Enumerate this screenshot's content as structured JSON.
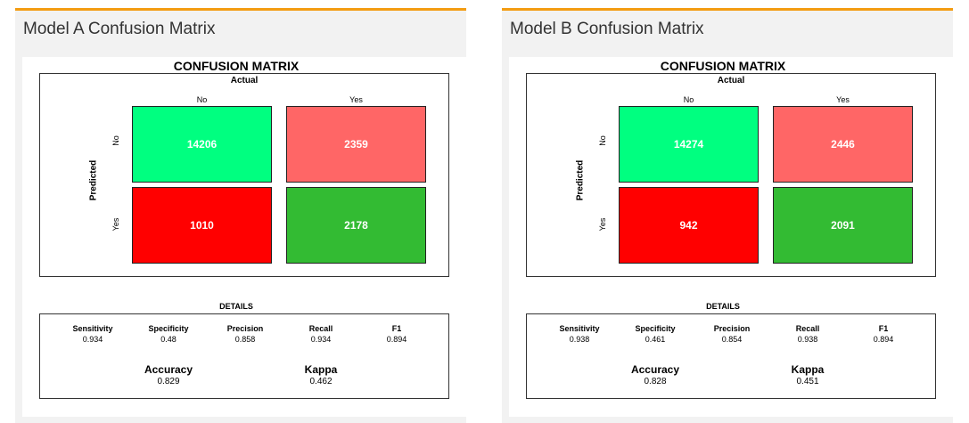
{
  "colors": {
    "accent": "#f39c12",
    "tn": "#00ff80",
    "fp": "#ff6666",
    "fn": "#ff0000",
    "tp": "#33bb33"
  },
  "panels": [
    {
      "title": "Model A Confusion Matrix",
      "chart_title": "CONFUSION MATRIX",
      "actual_label": "Actual",
      "predicted_label": "Predicted",
      "col_labels": [
        "No",
        "Yes"
      ],
      "row_labels": [
        "No",
        "Yes"
      ],
      "cells": [
        "14206",
        "2359",
        "1010",
        "2178"
      ],
      "details_title": "DETAILS",
      "metrics": [
        {
          "label": "Sensitivity",
          "value": "0.934"
        },
        {
          "label": "Specificity",
          "value": "0.48"
        },
        {
          "label": "Precision",
          "value": "0.858"
        },
        {
          "label": "Recall",
          "value": "0.934"
        },
        {
          "label": "F1",
          "value": "0.894"
        }
      ],
      "accuracy": {
        "label": "Accuracy",
        "value": "0.829"
      },
      "kappa": {
        "label": "Kappa",
        "value": "0.462"
      }
    },
    {
      "title": "Model B Confusion Matrix",
      "chart_title": "CONFUSION MATRIX",
      "actual_label": "Actual",
      "predicted_label": "Predicted",
      "col_labels": [
        "No",
        "Yes"
      ],
      "row_labels": [
        "No",
        "Yes"
      ],
      "cells": [
        "14274",
        "2446",
        "942",
        "2091"
      ],
      "details_title": "DETAILS",
      "metrics": [
        {
          "label": "Sensitivity",
          "value": "0.938"
        },
        {
          "label": "Specificity",
          "value": "0.461"
        },
        {
          "label": "Precision",
          "value": "0.854"
        },
        {
          "label": "Recall",
          "value": "0.938"
        },
        {
          "label": "F1",
          "value": "0.894"
        }
      ],
      "accuracy": {
        "label": "Accuracy",
        "value": "0.828"
      },
      "kappa": {
        "label": "Kappa",
        "value": "0.451"
      }
    }
  ],
  "chart_data": [
    {
      "type": "heatmap",
      "title": "CONFUSION MATRIX",
      "xlabel": "Actual",
      "ylabel": "Predicted",
      "categories": [
        "No",
        "Yes"
      ],
      "values": [
        [
          14206,
          2359
        ],
        [
          1010,
          2178
        ]
      ],
      "details": {
        "Sensitivity": 0.934,
        "Specificity": 0.48,
        "Precision": 0.858,
        "Recall": 0.934,
        "F1": 0.894,
        "Accuracy": 0.829,
        "Kappa": 0.462
      }
    },
    {
      "type": "heatmap",
      "title": "CONFUSION MATRIX",
      "xlabel": "Actual",
      "ylabel": "Predicted",
      "categories": [
        "No",
        "Yes"
      ],
      "values": [
        [
          14274,
          2446
        ],
        [
          942,
          2091
        ]
      ],
      "details": {
        "Sensitivity": 0.938,
        "Specificity": 0.461,
        "Precision": 0.854,
        "Recall": 0.938,
        "F1": 0.894,
        "Accuracy": 0.828,
        "Kappa": 0.451
      }
    }
  ]
}
